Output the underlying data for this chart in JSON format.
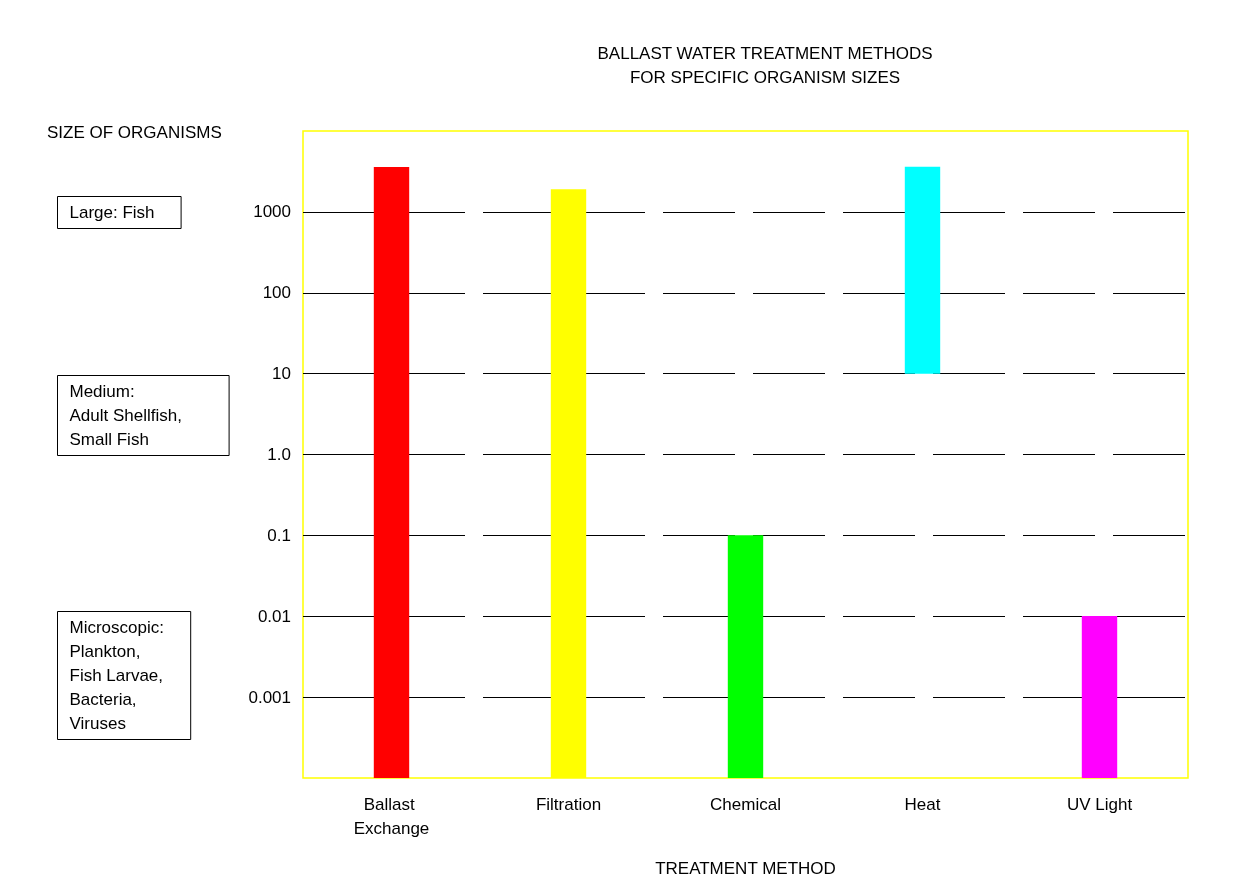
{
  "chart_data": {
    "type": "bar",
    "title": "BALLAST WATER TREATMENT METHODS\nFOR SPECIFIC ORGANISM SIZES",
    "xlabel": "TREATMENT METHOD",
    "ylabel": "SIZE OF ORGANISMS",
    "categories": [
      "Ballast Exchange",
      "Filtration",
      "Chemical",
      "Heat",
      "UV Light"
    ],
    "base": [
      0.0001,
      0.0001,
      0.0001,
      10,
      0.0001
    ],
    "values": [
      3600,
      1900,
      0.1,
      3600,
      0.01
    ],
    "colors": [
      "#ff0000",
      "#ffff00",
      "#00ff00",
      "#00ffff",
      "#ff00ff"
    ],
    "log": "y",
    "ylim": [
      0.0001,
      10000
    ],
    "yticks": [
      {
        "value": 0.001,
        "label": "0.001"
      },
      {
        "value": 0.01,
        "label": "0.01"
      },
      {
        "value": 0.1,
        "label": "0.1"
      },
      {
        "value": 1,
        "label": "1.0"
      },
      10,
      100,
      1000
    ],
    "grid": "y",
    "annotations": [
      "Large: Fish",
      "Medium:\nAdult Shellfish,\nSmall Fish",
      "Microscopic:\nPlankton,\nFish Larvae,\nBacteria,\nViruses"
    ]
  }
}
